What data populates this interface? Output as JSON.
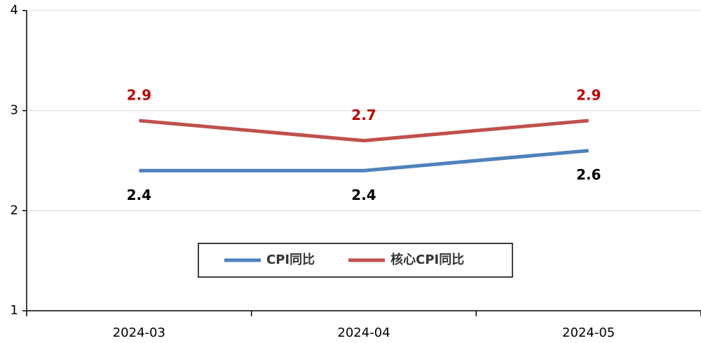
{
  "chart_data": {
    "type": "line",
    "categories": [
      "2024-03",
      "2024-04",
      "2024-05"
    ],
    "series": [
      {
        "name": "CPI同比",
        "color": "#4f81bd",
        "label_color": "#000000",
        "values": [
          2.4,
          2.4,
          2.6
        ]
      },
      {
        "name": "核心CPI同比",
        "color": "#c0504d",
        "label_color": "#c00000",
        "values": [
          2.9,
          2.7,
          2.9
        ]
      }
    ],
    "ylim": [
      1,
      4
    ],
    "yticks": [
      1,
      2,
      3,
      4
    ],
    "grid": true,
    "legend": "center"
  }
}
